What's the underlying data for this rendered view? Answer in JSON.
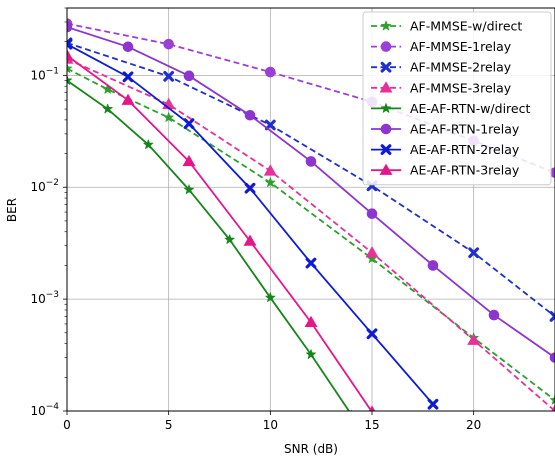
{
  "chart_data": {
    "type": "line",
    "title": "",
    "xlabel": "SNR (dB)",
    "ylabel": "BER",
    "xlim": [
      0,
      24
    ],
    "ylim": [
      0.0001,
      0.4
    ],
    "yscale": "log",
    "grid": true,
    "legend_position": "top-right",
    "x_ticks": [
      {
        "value": 0,
        "label": "0"
      },
      {
        "value": 5,
        "label": "5"
      },
      {
        "value": 10,
        "label": "10"
      },
      {
        "value": 15,
        "label": "15"
      },
      {
        "value": 20,
        "label": "20"
      }
    ],
    "y_ticks": [
      {
        "value": 0.0001,
        "mantissa": "10",
        "exponent": "−4"
      },
      {
        "value": 0.001,
        "mantissa": "10",
        "exponent": "−3"
      },
      {
        "value": 0.01,
        "mantissa": "10",
        "exponent": "−2"
      },
      {
        "value": 0.1,
        "mantissa": "10",
        "exponent": "−1"
      }
    ],
    "series": [
      {
        "name": "AF-MMSE-w/direct",
        "color": "#2ca02c",
        "dash": true,
        "marker": "star",
        "points": [
          [
            0,
            0.115
          ],
          [
            2,
            0.075
          ],
          [
            5,
            0.042
          ],
          [
            10,
            0.011
          ],
          [
            15,
            0.0023
          ],
          [
            20,
            0.00045
          ],
          [
            24,
            0.000125
          ]
        ]
      },
      {
        "name": "AF-MMSE-1relay",
        "color": "#9b3fd8",
        "dash": true,
        "marker": "circle",
        "points": [
          [
            0,
            0.29
          ],
          [
            5,
            0.19
          ],
          [
            10,
            0.107
          ],
          [
            15,
            0.058
          ],
          [
            20,
            0.026
          ],
          [
            24,
            0.0135
          ]
        ]
      },
      {
        "name": "AF-MMSE-2relay",
        "color": "#1f2fd0",
        "dash": true,
        "marker": "x",
        "points": [
          [
            0,
            0.195
          ],
          [
            5,
            0.098
          ],
          [
            10,
            0.036
          ],
          [
            15,
            0.0103
          ],
          [
            20,
            0.0026
          ],
          [
            24,
            0.0007
          ]
        ]
      },
      {
        "name": "AF-MMSE-3relay",
        "color": "#e8309a",
        "dash": true,
        "marker": "triangle",
        "points": [
          [
            0,
            0.14
          ],
          [
            5,
            0.055
          ],
          [
            10,
            0.014
          ],
          [
            15,
            0.0026
          ],
          [
            20,
            0.00043
          ],
          [
            24,
            0.0001
          ]
        ]
      },
      {
        "name": "AE-AF-RTN-w/direct",
        "color": "#16861b",
        "dash": false,
        "marker": "star",
        "points": [
          [
            0,
            0.09
          ],
          [
            2,
            0.05
          ],
          [
            4,
            0.024
          ],
          [
            6,
            0.0095
          ],
          [
            8,
            0.0034
          ],
          [
            10,
            0.00103
          ],
          [
            12,
            0.00032
          ],
          [
            14,
            9.2e-05
          ]
        ]
      },
      {
        "name": "AE-AF-RTN-1relay",
        "color": "#8e35d0",
        "dash": false,
        "marker": "circle",
        "points": [
          [
            0,
            0.27
          ],
          [
            3,
            0.18
          ],
          [
            6,
            0.099
          ],
          [
            9,
            0.044
          ],
          [
            12,
            0.017
          ],
          [
            15,
            0.0058
          ],
          [
            18,
            0.002
          ],
          [
            21,
            0.00072
          ],
          [
            24,
            0.0003
          ]
        ]
      },
      {
        "name": "AE-AF-RTN-2relay",
        "color": "#0d1ad6",
        "dash": false,
        "marker": "x",
        "points": [
          [
            0,
            0.19
          ],
          [
            3,
            0.097
          ],
          [
            6,
            0.037
          ],
          [
            9,
            0.0098
          ],
          [
            12,
            0.0021
          ],
          [
            15,
            0.00049
          ],
          [
            18,
            0.000115
          ]
        ]
      },
      {
        "name": "AE-AF-RTN-3relay",
        "color": "#e5158a",
        "dash": false,
        "marker": "triangle",
        "points": [
          [
            0,
            0.15
          ],
          [
            3,
            0.06
          ],
          [
            6,
            0.017
          ],
          [
            9,
            0.0033
          ],
          [
            12,
            0.00062
          ],
          [
            15,
            9.8e-05
          ]
        ]
      }
    ]
  }
}
